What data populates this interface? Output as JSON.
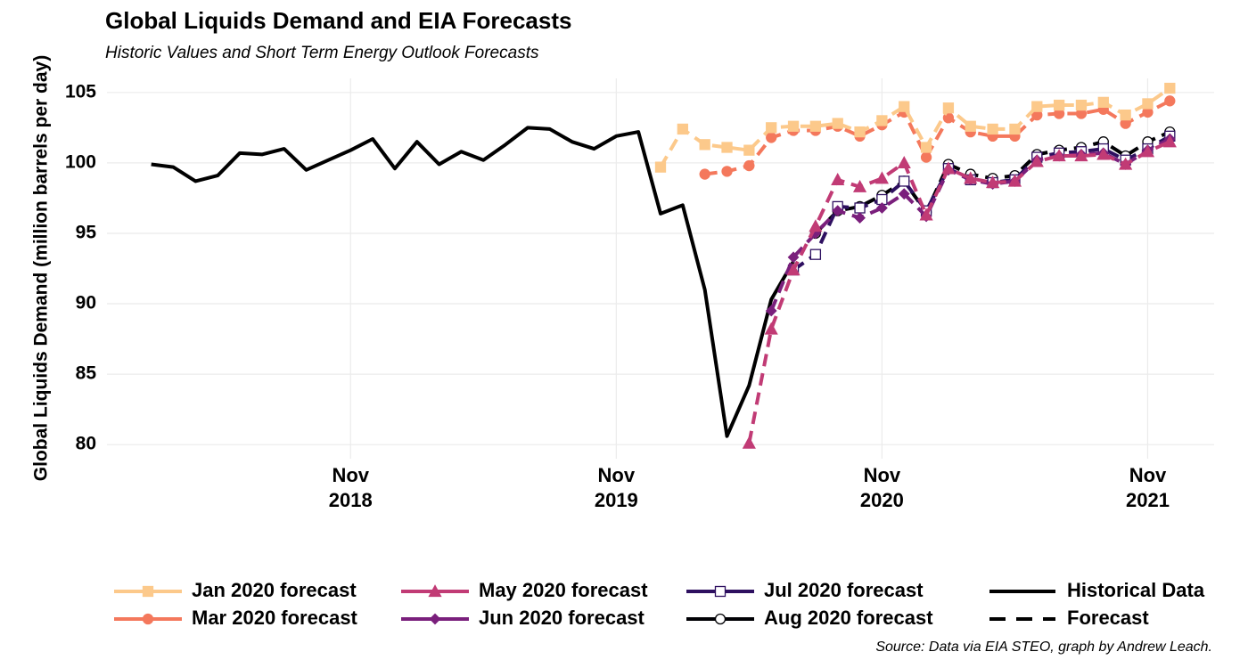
{
  "chart_data": {
    "type": "line",
    "title": "Global Liquids Demand and EIA Forecasts",
    "subtitle": "Historic Values and Short Term Energy Outlook Forecasts",
    "y_label": "Global Liquids Demand (million barrels per day)",
    "caption": "Source: Data via EIA STEO, graph by Andrew Leach.",
    "x": [
      "2018-02",
      "2018-03",
      "2018-04",
      "2018-05",
      "2018-06",
      "2018-07",
      "2018-08",
      "2018-09",
      "2018-10",
      "2018-11",
      "2018-12",
      "2019-01",
      "2019-02",
      "2019-03",
      "2019-04",
      "2019-05",
      "2019-06",
      "2019-07",
      "2019-08",
      "2019-09",
      "2019-10",
      "2019-11",
      "2019-12",
      "2020-01",
      "2020-02",
      "2020-03",
      "2020-04",
      "2020-05",
      "2020-06",
      "2020-07",
      "2020-08",
      "2020-09",
      "2020-10",
      "2020-11",
      "2020-12",
      "2021-01",
      "2021-02",
      "2021-03",
      "2021-04",
      "2021-05",
      "2021-06",
      "2021-07",
      "2021-08",
      "2021-09",
      "2021-10",
      "2021-11",
      "2021-12"
    ],
    "xlim": [
      "2017-12",
      "2022-02"
    ],
    "xticks": [
      {
        "value": "2018-11",
        "label": "Nov\n2018"
      },
      {
        "value": "2019-11",
        "label": "Nov\n2019"
      },
      {
        "value": "2020-11",
        "label": "Nov\n2020"
      },
      {
        "value": "2021-11",
        "label": "Nov\n2021"
      }
    ],
    "ylim": [
      79,
      106
    ],
    "yticks": [
      80,
      85,
      90,
      95,
      100,
      105
    ],
    "grid": true,
    "historical": {
      "color": "#000000",
      "linestyle": "solid",
      "values": [
        99.9,
        99.7,
        98.7,
        99.1,
        100.7,
        100.6,
        101.0,
        99.5,
        100.2,
        100.9,
        101.7,
        99.6,
        101.5,
        99.9,
        100.8,
        100.2,
        101.3,
        102.5,
        102.4,
        101.5,
        101.0,
        101.9,
        102.2,
        96.4,
        97.0,
        91.0,
        80.6,
        84.2,
        90.3,
        93.0,
        null,
        null,
        null,
        null,
        null,
        null,
        null,
        null,
        null,
        null,
        null,
        null,
        null,
        null,
        null,
        null,
        null
      ]
    },
    "series": [
      {
        "name": "Jan 2020 forecast",
        "color": "#fcc98b",
        "marker": "square",
        "linestyle": "dashed",
        "values": [
          null,
          null,
          null,
          null,
          null,
          null,
          null,
          null,
          null,
          null,
          null,
          null,
          null,
          null,
          null,
          null,
          null,
          null,
          null,
          null,
          null,
          null,
          null,
          99.7,
          102.4,
          101.3,
          101.1,
          100.9,
          102.5,
          102.6,
          102.6,
          102.8,
          102.2,
          103.0,
          104.0,
          101.1,
          103.9,
          102.6,
          102.4,
          102.4,
          104.0,
          104.1,
          104.1,
          104.3,
          103.4,
          104.2,
          105.3
        ]
      },
      {
        "name": "Mar 2020 forecast",
        "color": "#f4785c",
        "marker": "circle",
        "linestyle": "dashed",
        "values": [
          null,
          null,
          null,
          null,
          null,
          null,
          null,
          null,
          null,
          null,
          null,
          null,
          null,
          null,
          null,
          null,
          null,
          null,
          null,
          null,
          null,
          null,
          null,
          null,
          null,
          99.2,
          99.4,
          99.8,
          101.8,
          102.3,
          102.3,
          102.6,
          101.9,
          102.7,
          103.6,
          100.4,
          103.2,
          102.2,
          101.9,
          101.9,
          103.4,
          103.5,
          103.5,
          103.8,
          102.8,
          103.6,
          104.4
        ]
      },
      {
        "name": "May 2020 forecast",
        "color": "#c13b75",
        "marker": "triangle",
        "linestyle": "dashed",
        "values": [
          null,
          null,
          null,
          null,
          null,
          null,
          null,
          null,
          null,
          null,
          null,
          null,
          null,
          null,
          null,
          null,
          null,
          null,
          null,
          null,
          null,
          null,
          null,
          null,
          null,
          null,
          null,
          80.1,
          88.2,
          92.4,
          95.5,
          98.8,
          98.3,
          98.9,
          100.0,
          96.3,
          99.6,
          98.9,
          98.6,
          98.7,
          100.1,
          100.5,
          100.5,
          100.6,
          99.9,
          100.8,
          101.5
        ]
      },
      {
        "name": "Jun 2020 forecast",
        "color": "#7a1f7c",
        "marker": "diamond",
        "linestyle": "dashed",
        "values": [
          null,
          null,
          null,
          null,
          null,
          null,
          null,
          null,
          null,
          null,
          null,
          null,
          null,
          null,
          null,
          null,
          null,
          null,
          null,
          null,
          null,
          null,
          null,
          null,
          null,
          null,
          null,
          null,
          89.5,
          93.3,
          95.0,
          96.6,
          96.1,
          96.8,
          97.8,
          96.2,
          99.5,
          98.8,
          98.5,
          98.7,
          100.2,
          100.5,
          100.6,
          100.7,
          99.9,
          100.9,
          101.7
        ]
      },
      {
        "name": "Jul 2020 forecast",
        "color": "#2e1060",
        "marker": "open-square",
        "linestyle": "dashed",
        "values": [
          null,
          null,
          null,
          null,
          null,
          null,
          null,
          null,
          null,
          null,
          null,
          null,
          null,
          null,
          null,
          null,
          null,
          null,
          null,
          null,
          null,
          null,
          null,
          null,
          null,
          null,
          null,
          null,
          null,
          92.4,
          93.5,
          96.9,
          96.8,
          97.4,
          98.7,
          96.6,
          99.6,
          98.8,
          98.6,
          98.8,
          100.4,
          100.7,
          100.8,
          101.0,
          100.2,
          101.0,
          101.9
        ]
      },
      {
        "name": "Aug 2020 forecast",
        "color": "#000004",
        "marker": "open-circle",
        "linestyle": "dashed",
        "values": [
          null,
          null,
          null,
          null,
          null,
          null,
          null,
          null,
          null,
          null,
          null,
          null,
          null,
          null,
          null,
          null,
          null,
          null,
          null,
          null,
          null,
          null,
          null,
          null,
          null,
          null,
          null,
          null,
          null,
          null,
          95.0,
          96.6,
          96.9,
          97.7,
          98.7,
          96.5,
          99.9,
          99.2,
          98.9,
          99.1,
          100.6,
          100.9,
          101.1,
          101.5,
          100.5,
          101.5,
          102.2
        ]
      }
    ],
    "linetype_legend": {
      "solid": "Historical Data",
      "dashed": "Forecast"
    },
    "legend": "bottom"
  }
}
